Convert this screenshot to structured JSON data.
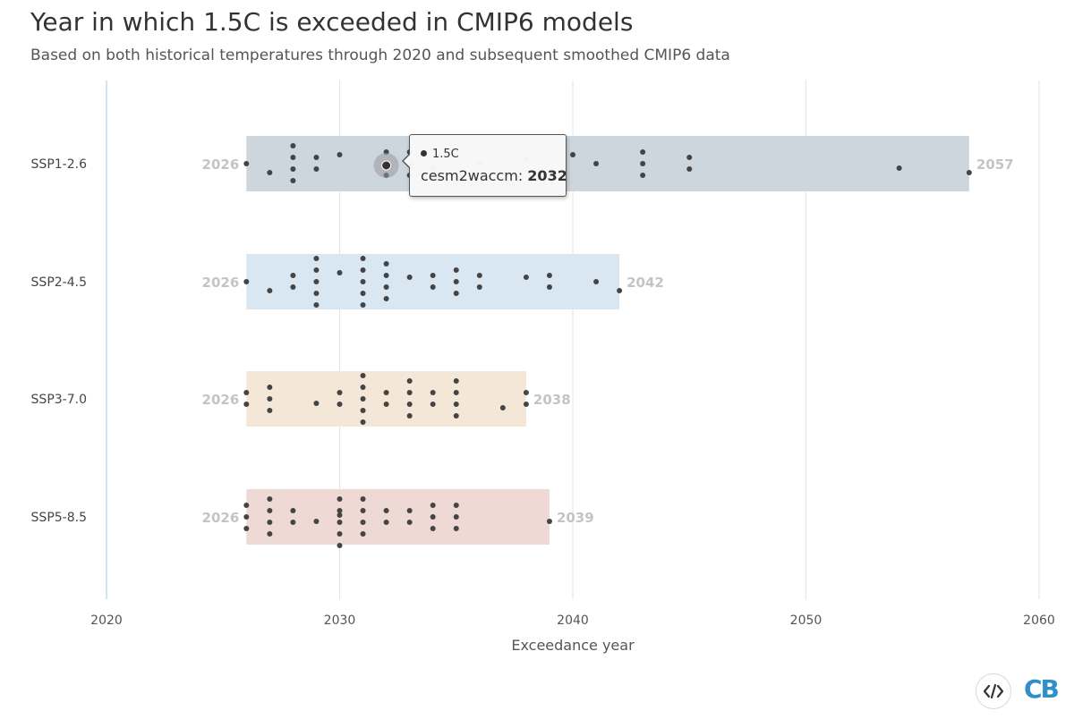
{
  "title": "Year in which 1.5C is exceeded in CMIP6 models",
  "subtitle": "Based on both historical temperatures through 2020 and subsequent smoothed CMIP6 data",
  "tooltip": {
    "series": "1.5C",
    "model": "cesm2waccm:",
    "year": "2032"
  },
  "logo": {
    "text": "CB",
    "icon": "code-embed-icon"
  },
  "colors": {
    "axis": "#c5dbe8",
    "grid": "#e3e3e3",
    "dot": "#444444",
    "range_label": "#c4c4c4"
  },
  "chart_data": {
    "type": "scatter",
    "xlabel": "Exceedance year",
    "xlim": [
      2020,
      2060
    ],
    "xticks": [
      2020,
      2030,
      2040,
      2050,
      2060
    ],
    "grid": true,
    "categories": [
      "SSP1-2.6",
      "SSP2-4.5",
      "SSP3-7.0",
      "SSP5-8.5"
    ],
    "series": [
      {
        "name": "SSP1-2.6",
        "color": "#cdd5dd",
        "min": 2026,
        "max": 2057,
        "min_label": "2026",
        "max_label": "2057",
        "values": [
          2026,
          2027,
          2028,
          2028,
          2028,
          2028,
          2029,
          2029,
          2030,
          2032,
          2032,
          2032,
          2033,
          2033,
          2033,
          2034,
          2036,
          2038,
          2040,
          2041,
          2043,
          2043,
          2043,
          2045,
          2045,
          2054,
          2057
        ]
      },
      {
        "name": "SSP2-4.5",
        "color": "#d9e7f3",
        "min": 2026,
        "max": 2042,
        "min_label": "2026",
        "max_label": "2042",
        "values": [
          2026,
          2027,
          2028,
          2028,
          2029,
          2029,
          2029,
          2029,
          2029,
          2030,
          2031,
          2031,
          2031,
          2031,
          2031,
          2032,
          2032,
          2032,
          2032,
          2033,
          2034,
          2034,
          2035,
          2035,
          2035,
          2036,
          2036,
          2038,
          2039,
          2039,
          2041,
          2042
        ]
      },
      {
        "name": "SSP3-7.0",
        "color": "#f4e7d8",
        "min": 2026,
        "max": 2038,
        "min_label": "2026",
        "max_label": "2038",
        "values": [
          2026,
          2026,
          2027,
          2027,
          2027,
          2029,
          2030,
          2030,
          2031,
          2031,
          2031,
          2031,
          2031,
          2032,
          2032,
          2033,
          2033,
          2033,
          2033,
          2034,
          2034,
          2035,
          2035,
          2035,
          2035,
          2037,
          2038,
          2038
        ]
      },
      {
        "name": "SSP5-8.5",
        "color": "#efd9d5",
        "min": 2026,
        "max": 2039,
        "min_label": "2026",
        "max_label": "2039",
        "values": [
          2026,
          2026,
          2026,
          2027,
          2027,
          2027,
          2027,
          2028,
          2028,
          2029,
          2030,
          2030,
          2030,
          2030,
          2030,
          2030,
          2031,
          2031,
          2031,
          2031,
          2032,
          2032,
          2033,
          2033,
          2034,
          2034,
          2034,
          2035,
          2035,
          2035,
          2039
        ]
      }
    ],
    "highlight": {
      "category": "SSP1-2.6",
      "value": 2032
    }
  }
}
